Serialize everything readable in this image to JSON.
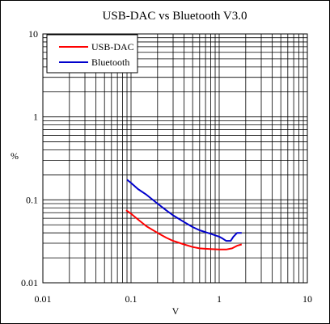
{
  "chart_data": {
    "type": "line",
    "title": "USB-DAC vs Bluetooth V3.0",
    "xlabel": "V",
    "ylabel": "%",
    "xscale": "log",
    "yscale": "log",
    "xlim": [
      0.01,
      10
    ],
    "ylim": [
      0.01,
      10
    ],
    "grid": true,
    "legend_position": "top-left",
    "x_ticks": [
      {
        "value": 0.01,
        "label": "0.01"
      },
      {
        "value": 0.1,
        "label": "0.1"
      },
      {
        "value": 1,
        "label": "1"
      },
      {
        "value": 10,
        "label": "10"
      }
    ],
    "y_ticks": [
      {
        "value": 10,
        "label": "10"
      },
      {
        "value": 1,
        "label": "1"
      },
      {
        "value": 0.1,
        "label": "0.1"
      },
      {
        "value": 0.01,
        "label": "0.01"
      }
    ],
    "series": [
      {
        "name": "USB-DAC",
        "color": "#ff0000",
        "x": [
          0.088,
          0.1,
          0.12,
          0.15,
          0.2,
          0.25,
          0.3,
          0.4,
          0.5,
          0.6,
          0.8,
          1.0,
          1.2,
          1.4,
          1.6,
          1.8
        ],
        "y": [
          0.075,
          0.068,
          0.058,
          0.048,
          0.04,
          0.035,
          0.032,
          0.029,
          0.027,
          0.026,
          0.0255,
          0.0252,
          0.0252,
          0.026,
          0.028,
          0.029
        ]
      },
      {
        "name": "Bluetooth",
        "color": "#0000cc",
        "x": [
          0.09,
          0.1,
          0.12,
          0.15,
          0.2,
          0.25,
          0.3,
          0.4,
          0.5,
          0.6,
          0.8,
          1.0,
          1.1,
          1.2,
          1.35,
          1.45,
          1.6,
          1.8
        ],
        "y": [
          0.175,
          0.16,
          0.135,
          0.115,
          0.09,
          0.075,
          0.065,
          0.054,
          0.047,
          0.043,
          0.039,
          0.036,
          0.034,
          0.032,
          0.032,
          0.036,
          0.04,
          0.04
        ]
      }
    ]
  }
}
